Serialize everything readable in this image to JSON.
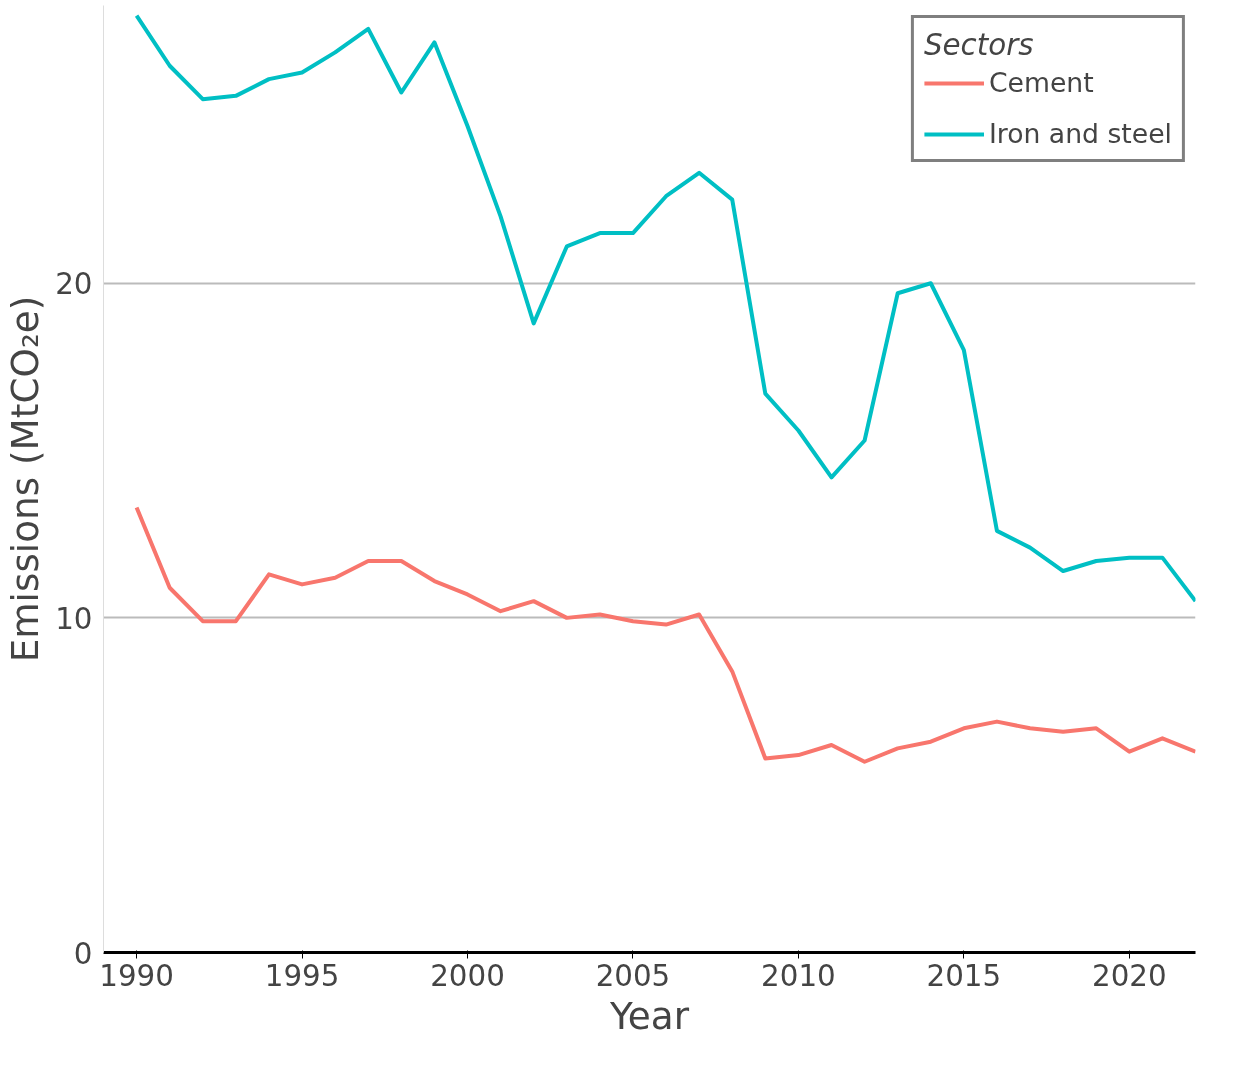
{
  "chart_data": {
    "type": "line",
    "xlabel": "Year",
    "ylabel": "Emissions (MtCO₂e)",
    "legend_title": "Sectors",
    "x": [
      1990,
      1991,
      1992,
      1993,
      1994,
      1995,
      1996,
      1997,
      1998,
      1999,
      2000,
      2001,
      2002,
      2003,
      2004,
      2005,
      2006,
      2007,
      2008,
      2009,
      2010,
      2011,
      2012,
      2013,
      2014,
      2015,
      2016,
      2017,
      2018,
      2019,
      2020,
      2021,
      2022
    ],
    "series": [
      {
        "name": "Cement",
        "color": "#f8766d",
        "values": [
          13.3,
          10.9,
          9.9,
          9.9,
          11.3,
          11.0,
          11.2,
          11.7,
          11.7,
          11.1,
          10.7,
          10.2,
          10.5,
          10.0,
          10.1,
          9.9,
          9.8,
          10.1,
          8.4,
          5.8,
          5.9,
          6.2,
          5.7,
          6.1,
          6.3,
          6.7,
          6.9,
          6.7,
          6.6,
          6.7,
          6.0,
          6.4,
          6.0
        ]
      },
      {
        "name": "Iron and steel",
        "color": "#00bfc4",
        "values": [
          28.0,
          26.5,
          25.5,
          25.6,
          26.1,
          26.3,
          26.9,
          27.6,
          25.7,
          27.2,
          24.7,
          22.0,
          18.8,
          21.1,
          21.5,
          21.5,
          22.6,
          23.3,
          22.5,
          16.7,
          15.6,
          14.2,
          15.3,
          19.7,
          20.0,
          18.0,
          12.6,
          12.1,
          11.4,
          11.7,
          11.8,
          11.8,
          10.5
        ]
      }
    ],
    "xlim": [
      1989,
      2022
    ],
    "ylim": [
      0,
      28.3
    ],
    "xticks": [
      1990,
      1995,
      2000,
      2005,
      2010,
      2015,
      2020
    ],
    "yticks": [
      0,
      10,
      20
    ],
    "grid": "y",
    "legend": "top right",
    "marker": "none",
    "line_style": "solid"
  }
}
